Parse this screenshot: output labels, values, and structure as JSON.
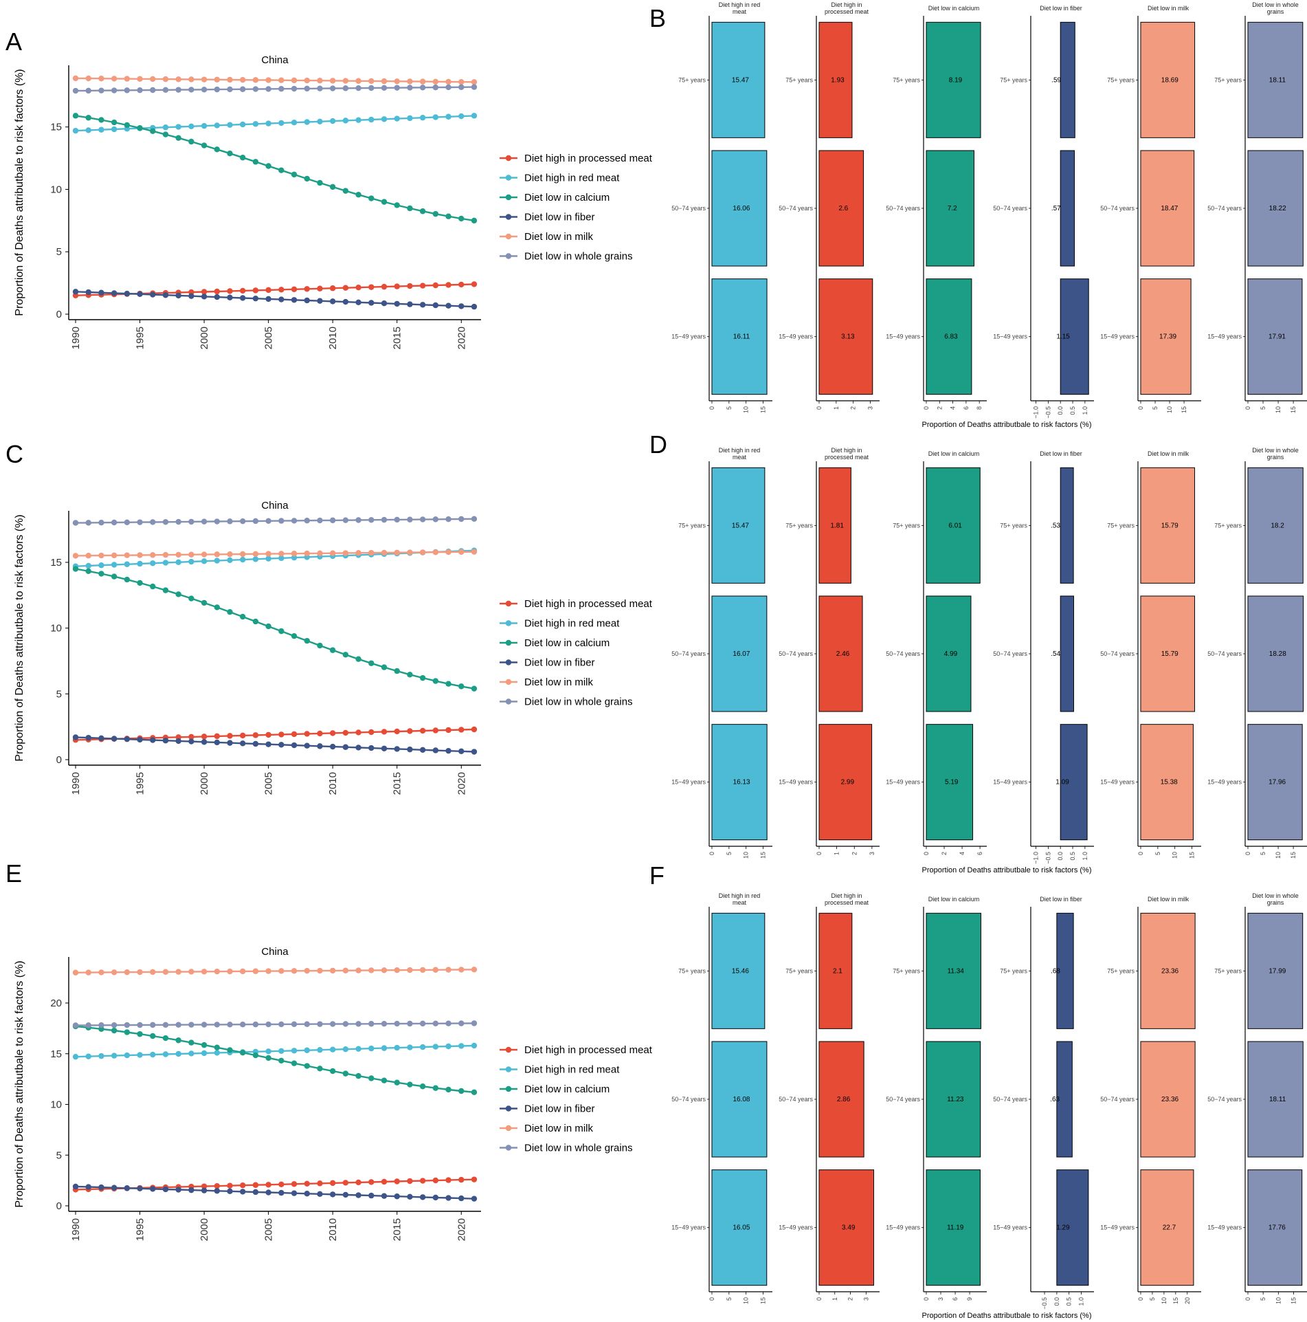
{
  "figure": {
    "panel_letters": [
      "A",
      "B",
      "C",
      "D",
      "E",
      "F"
    ],
    "colors": {
      "Diet high in processed meat": "#e64b35",
      "Diet high in red meat": "#4dbbd5",
      "Diet low in calcium": "#1b9e85",
      "Diet low in fiber": "#3c5488",
      "Diet low in milk": "#f39b7f",
      "Diet low in whole grains": "#8491b4"
    }
  },
  "chart_data": [
    {
      "panel": "A",
      "type": "line",
      "title": "China",
      "xlabel": "",
      "ylabel": "Proportion of Deaths attributbale to risk factors (%)",
      "xlim": [
        1990,
        2021
      ],
      "ylim": [
        0,
        19.5
      ],
      "xticks": [
        "1990",
        "1995",
        "2000",
        "2005",
        "2010",
        "2015",
        "2020"
      ],
      "yticks": [
        "0",
        "5",
        "10",
        "15"
      ],
      "legend": [
        "Diet high in processed meat",
        "Diet high in red meat",
        "Diet low in calcium",
        "Diet low in fiber",
        "Diet low in milk",
        "Diet low in whole grains"
      ],
      "series": [
        {
          "name": "Diet high in processed meat",
          "start": 1.5,
          "end": 2.4
        },
        {
          "name": "Diet high in red meat",
          "start": 14.7,
          "end": 15.9
        },
        {
          "name": "Diet low in calcium",
          "start": 15.9,
          "end": 7.5
        },
        {
          "name": "Diet low in fiber",
          "start": 1.8,
          "end": 0.6
        },
        {
          "name": "Diet low in milk",
          "start": 18.9,
          "end": 18.6
        },
        {
          "name": "Diet low in whole grains",
          "start": 17.9,
          "end": 18.2
        }
      ]
    },
    {
      "panel": "B",
      "type": "bar",
      "xlabel": "Proportion of Deaths attributbale to risk factors (%)",
      "categories": [
        "75+ years",
        "50−74 years",
        "15−49 years"
      ],
      "facets": [
        {
          "name": "Diet high in red meat",
          "title": [
            "Diet high in red",
            "meat"
          ],
          "values": [
            15.47,
            16.06,
            16.11
          ],
          "labels": [
            "15.47",
            "16.06",
            "16.11"
          ],
          "xlim": [
            0,
            16.5
          ],
          "ticks": [
            "0",
            "5",
            "10",
            "15"
          ]
        },
        {
          "name": "Diet high in processed meat",
          "title": [
            "Diet high in",
            "processed meat"
          ],
          "values": [
            1.93,
            2.6,
            3.13
          ],
          "labels": [
            "1.93",
            "2.6",
            "3.13"
          ],
          "xlim": [
            0,
            3.3
          ],
          "ticks": [
            "0",
            "1",
            "2",
            "3"
          ]
        },
        {
          "name": "Diet low in calcium",
          "title": [
            "Diet low in calcium"
          ],
          "values": [
            8.19,
            7.2,
            6.83
          ],
          "labels": [
            "8.19",
            "7.2",
            "6.83"
          ],
          "xlim": [
            0,
            8.5
          ],
          "ticks": [
            "0",
            "2",
            "4",
            "6",
            "8"
          ]
        },
        {
          "name": "Diet low in fiber",
          "title": [
            "Diet low in fiber"
          ],
          "values": [
            0.59,
            0.57,
            1.15
          ],
          "labels": [
            ".59",
            ".57",
            "1.15"
          ],
          "xlim": [
            -1.1,
            1.2
          ],
          "ticks": [
            "−1.0",
            "−0.5",
            "0.0",
            "0.5",
            "1.0"
          ]
        },
        {
          "name": "Diet low in milk",
          "title": [
            "Diet low in milk"
          ],
          "values": [
            18.69,
            18.47,
            17.39
          ],
          "labels": [
            "18.69",
            "18.47",
            "17.39"
          ],
          "xlim": [
            0,
            19.5
          ],
          "ticks": [
            "0",
            "5",
            "10",
            "15"
          ]
        },
        {
          "name": "Diet low in whole grains",
          "title": [
            "Diet low in whole",
            "grains"
          ],
          "values": [
            18.11,
            18.22,
            17.91
          ],
          "labels": [
            "18.11",
            "18.22",
            "17.91"
          ],
          "xlim": [
            0,
            18.6
          ],
          "ticks": [
            "0",
            "5",
            "10",
            "15"
          ]
        }
      ]
    },
    {
      "panel": "C",
      "type": "line",
      "title": "China",
      "xlabel": "",
      "ylabel": "Proportion of Deaths attributbale to risk factors (%)",
      "xlim": [
        1990,
        2021
      ],
      "ylim": [
        0,
        18.5
      ],
      "xticks": [
        "1990",
        "1995",
        "2000",
        "2005",
        "2010",
        "2015",
        "2020"
      ],
      "yticks": [
        "0",
        "5",
        "10",
        "15"
      ],
      "legend": [
        "Diet high in processed meat",
        "Diet high in red meat",
        "Diet low in calcium",
        "Diet low in fiber",
        "Diet low in milk",
        "Diet low in whole grains"
      ],
      "series": [
        {
          "name": "Diet high in processed meat",
          "start": 1.5,
          "end": 2.3
        },
        {
          "name": "Diet high in red meat",
          "start": 14.7,
          "end": 15.9
        },
        {
          "name": "Diet low in calcium",
          "start": 14.5,
          "end": 5.4
        },
        {
          "name": "Diet low in fiber",
          "start": 1.7,
          "end": 0.6
        },
        {
          "name": "Diet low in milk",
          "start": 15.5,
          "end": 15.8
        },
        {
          "name": "Diet low in whole grains",
          "start": 18.0,
          "end": 18.3
        }
      ]
    },
    {
      "panel": "D",
      "type": "bar",
      "xlabel": "Proportion of Deaths attributbale to risk factors (%)",
      "categories": [
        "75+ years",
        "50−74 years",
        "15−49 years"
      ],
      "facets": [
        {
          "name": "Diet high in red meat",
          "title": [
            "Diet high in red",
            "meat"
          ],
          "values": [
            15.47,
            16.07,
            16.13
          ],
          "labels": [
            "15.47",
            "16.07",
            "16.13"
          ],
          "xlim": [
            0,
            16.5
          ],
          "ticks": [
            "0",
            "5",
            "10",
            "15"
          ]
        },
        {
          "name": "Diet high in processed meat",
          "title": [
            "Diet high in",
            "processed meat"
          ],
          "values": [
            1.81,
            2.46,
            2.99
          ],
          "labels": [
            "1.81",
            "2.46",
            "2.99"
          ],
          "xlim": [
            0,
            3.2
          ],
          "ticks": [
            "0",
            "1",
            "2",
            "3"
          ]
        },
        {
          "name": "Diet low in calcium",
          "title": [
            "Diet low in calcium"
          ],
          "values": [
            6.01,
            4.99,
            5.19
          ],
          "labels": [
            "6.01",
            "4.99",
            "5.19"
          ],
          "xlim": [
            0,
            6.3
          ],
          "ticks": [
            "0",
            "2",
            "4",
            "6"
          ]
        },
        {
          "name": "Diet low in fiber",
          "title": [
            "Diet low in fiber"
          ],
          "values": [
            0.53,
            0.54,
            1.09
          ],
          "labels": [
            ".53",
            ".54",
            "1.09"
          ],
          "xlim": [
            -1.1,
            1.2
          ],
          "ticks": [
            "−1.0",
            "−0.5",
            "0.0",
            "0.5",
            "1.0"
          ]
        },
        {
          "name": "Diet low in milk",
          "title": [
            "Diet low in milk"
          ],
          "values": [
            15.79,
            15.79,
            15.38
          ],
          "labels": [
            "15.79",
            "15.79",
            "15.38"
          ],
          "xlim": [
            0,
            16.5
          ],
          "ticks": [
            "0",
            "5",
            "10",
            "15"
          ]
        },
        {
          "name": "Diet low in whole grains",
          "title": [
            "Diet low in whole",
            "grains"
          ],
          "values": [
            18.2,
            18.28,
            17.96
          ],
          "labels": [
            "18.2",
            "18.28",
            "17.96"
          ],
          "xlim": [
            0,
            18.6
          ],
          "ticks": [
            "0",
            "5",
            "10",
            "15"
          ]
        }
      ]
    },
    {
      "panel": "E",
      "type": "line",
      "title": "China",
      "xlabel": "",
      "ylabel": "Proportion of Deaths attributbale to risk factors (%)",
      "xlim": [
        1990,
        2021
      ],
      "ylim": [
        0,
        24
      ],
      "xticks": [
        "1990",
        "1995",
        "2000",
        "2005",
        "2010",
        "2015",
        "2020"
      ],
      "yticks": [
        "0",
        "5",
        "10",
        "15",
        "20"
      ],
      "legend": [
        "Diet high in processed meat",
        "Diet high in red meat",
        "Diet low in calcium",
        "Diet low in fiber",
        "Diet low in milk",
        "Diet low in whole grains"
      ],
      "series": [
        {
          "name": "Diet high in processed meat",
          "start": 1.6,
          "end": 2.6
        },
        {
          "name": "Diet high in red meat",
          "start": 14.7,
          "end": 15.8
        },
        {
          "name": "Diet low in calcium",
          "start": 17.7,
          "end": 11.2
        },
        {
          "name": "Diet low in fiber",
          "start": 1.9,
          "end": 0.7
        },
        {
          "name": "Diet low in milk",
          "start": 23.0,
          "end": 23.3
        },
        {
          "name": "Diet low in whole grains",
          "start": 17.8,
          "end": 18.0
        }
      ]
    },
    {
      "panel": "F",
      "type": "bar",
      "xlabel": "Proportion of Deaths attributbale to risk factors (%)",
      "categories": [
        "75+ years",
        "50−74 years",
        "15−49 years"
      ],
      "facets": [
        {
          "name": "Diet high in red meat",
          "title": [
            "Diet high in red",
            "meat"
          ],
          "values": [
            15.46,
            16.08,
            16.05
          ],
          "labels": [
            "15.46",
            "16.08",
            "16.05"
          ],
          "xlim": [
            0,
            16.5
          ],
          "ticks": [
            "0",
            "5",
            "10",
            "15"
          ]
        },
        {
          "name": "Diet high in processed meat",
          "title": [
            "Diet high in",
            "processed meat"
          ],
          "values": [
            2.1,
            2.86,
            3.49
          ],
          "labels": [
            "2.1",
            "2.86",
            "3.49"
          ],
          "xlim": [
            0,
            3.6
          ],
          "ticks": [
            "0",
            "1",
            "2",
            "3"
          ]
        },
        {
          "name": "Diet low in calcium",
          "title": [
            "Diet low in calcium"
          ],
          "values": [
            11.34,
            11.23,
            11.19
          ],
          "labels": [
            "11.34",
            "11.23",
            "11.19"
          ],
          "xlim": [
            0,
            11.7
          ],
          "ticks": [
            "0",
            "3",
            "6",
            "9"
          ]
        },
        {
          "name": "Diet low in fiber",
          "title": [
            "Diet low in fiber"
          ],
          "values": [
            0.68,
            0.63,
            1.29
          ],
          "labels": [
            ".68",
            ".63",
            "1.29"
          ],
          "xlim": [
            -0.95,
            1.35
          ],
          "ticks": [
            "−0.5",
            "0.0",
            "0.5",
            "1.0"
          ]
        },
        {
          "name": "Diet low in milk",
          "title": [
            "Diet low in milk"
          ],
          "values": [
            23.36,
            23.36,
            22.7
          ],
          "labels": [
            "23.36",
            "23.36",
            "22.7"
          ],
          "xlim": [
            0,
            24.2
          ],
          "ticks": [
            "0",
            "5",
            "10",
            "15",
            "20"
          ]
        },
        {
          "name": "Diet low in whole grains",
          "title": [
            "Diet low in whole",
            "grains"
          ],
          "values": [
            17.99,
            18.11,
            17.76
          ],
          "labels": [
            "17.99",
            "18.11",
            "17.76"
          ],
          "xlim": [
            0,
            18.5
          ],
          "ticks": [
            "0",
            "5",
            "10",
            "15"
          ]
        }
      ]
    }
  ]
}
